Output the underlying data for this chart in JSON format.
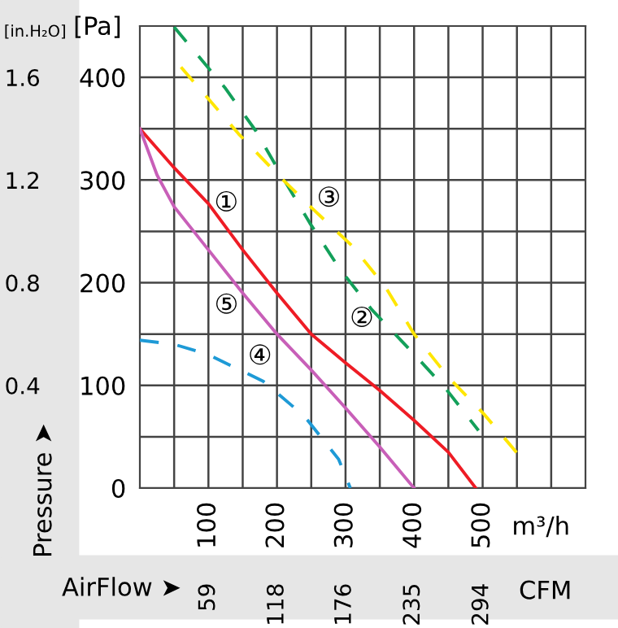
{
  "chart_data": {
    "type": "line",
    "xlabel": "m³/h",
    "ylabel": "[Pa]",
    "y2label": "[in.H₂O]",
    "x2label": "CFM",
    "xlim": [
      0,
      650
    ],
    "ylim": [
      0,
      450
    ],
    "y2lim": [
      0,
      1.8
    ],
    "x2lim": [
      0,
      383
    ],
    "xticks": [
      {
        "value": 50,
        "label": null
      },
      100,
      {
        "value": 150,
        "label": null
      },
      200,
      {
        "value": 250,
        "label": null
      },
      300,
      {
        "value": 350,
        "label": null
      },
      400,
      {
        "value": 450,
        "label": null
      },
      500,
      {
        "value": 550,
        "label": null
      },
      {
        "value": 600,
        "label": null
      }
    ],
    "yticks": [
      0,
      {
        "value": 50,
        "label": null
      },
      100,
      {
        "value": 150,
        "label": null
      },
      200,
      {
        "value": 250,
        "label": null
      },
      300,
      {
        "value": 350,
        "label": null
      },
      400
    ],
    "y2ticks": [
      0.4,
      0.8,
      1.2,
      1.6
    ],
    "x2ticks": [
      59,
      118,
      176,
      235,
      294
    ],
    "grid": true,
    "series": [
      {
        "name": "①",
        "color": "#ee1c25",
        "line_style": "solid",
        "x": [
          0,
          50,
          100,
          150,
          200,
          250,
          300,
          350,
          400,
          450,
          490
        ],
        "values": [
          350,
          312,
          277,
          232,
          190,
          150,
          122,
          95,
          66,
          35,
          0
        ]
      },
      {
        "name": "②",
        "color": "#13a05a",
        "line_style": "dashed",
        "x": [
          50,
          124,
          169,
          208,
          248,
          291,
          338,
          395,
          446,
          494
        ],
        "values": [
          449,
          390,
          348,
          303,
          258,
          214,
          174,
          134,
          97,
          56
        ]
      },
      {
        "name": "③",
        "color": "#ffe600",
        "line_style": "dashed",
        "x": [
          60,
          144,
          200,
          252,
          311,
          359,
          400,
          450,
          502,
          553
        ],
        "values": [
          410,
          345,
          306,
          272,
          235,
          195,
          150,
          108,
          72,
          32
        ]
      },
      {
        "name": "④",
        "color": "#1e9ad6",
        "line_style": "dashed",
        "x": [
          0,
          50,
          100,
          180,
          240,
          290,
          307
        ],
        "values": [
          144,
          140,
          130,
          104,
          70,
          28,
          0
        ]
      },
      {
        "name": "⑤",
        "color": "#c85fb8",
        "line_style": "solid",
        "x": [
          0,
          25,
          50,
          100,
          150,
          200,
          250,
          300,
          350,
          400
        ],
        "values": [
          350,
          305,
          274,
          232,
          190,
          150,
          115,
          78,
          40,
          0
        ]
      }
    ],
    "annotations": [
      "Pressure ➤",
      "AirFlow ➤"
    ]
  }
}
